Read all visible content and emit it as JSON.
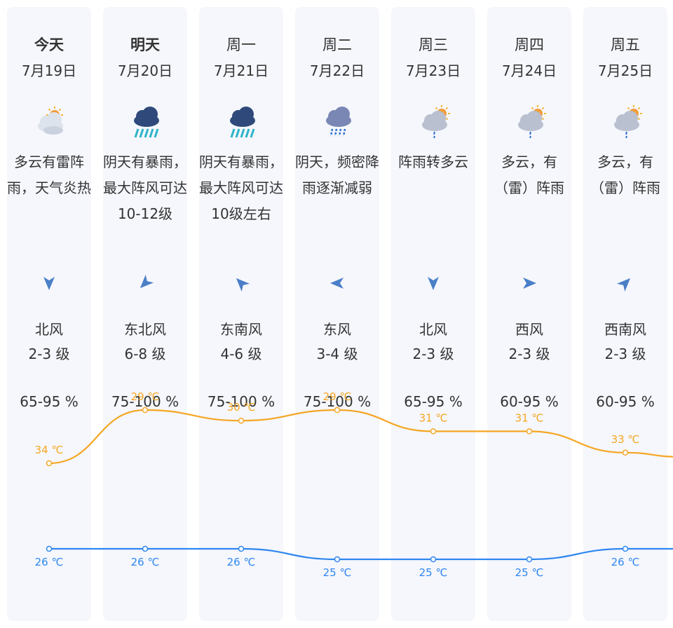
{
  "colors": {
    "high": "#f5a623",
    "low": "#2f86f0",
    "card": "#f5f7fc"
  },
  "days": [
    {
      "day": "今天",
      "bold": true,
      "date": "7月19日",
      "icon": "partly-cloudy-thunder-icon",
      "desc": "多云有雷阵雨，天气炎热",
      "wind_dir": "北风",
      "wind_arrow": "wind-arrow-north-icon",
      "wind_level": "2-3 级",
      "humidity": "65-95 %",
      "high": "34 ℃",
      "low": "26 ℃"
    },
    {
      "day": "明天",
      "bold": true,
      "date": "7月20日",
      "icon": "heavy-rain-icon",
      "desc": "阴天有暴雨，最大阵风可达10-12级",
      "wind_dir": "东北风",
      "wind_arrow": "wind-arrow-northeast-icon",
      "wind_level": "6-8 级",
      "humidity": "75-100 %",
      "high": "29 ℃",
      "low": "26 ℃"
    },
    {
      "day": "周一",
      "bold": false,
      "date": "7月21日",
      "icon": "heavy-rain-icon",
      "desc": "阴天有暴雨，最大阵风可达10级左右",
      "wind_dir": "东南风",
      "wind_arrow": "wind-arrow-southeast-icon",
      "wind_level": "4-6 级",
      "humidity": "75-100 %",
      "high": "30 ℃",
      "low": "26 ℃"
    },
    {
      "day": "周二",
      "bold": false,
      "date": "7月22日",
      "icon": "overcast-rain-icon",
      "desc": "阴天，频密降雨逐渐减弱",
      "wind_dir": "东风",
      "wind_arrow": "wind-arrow-east-icon",
      "wind_level": "3-4 级",
      "humidity": "75-100 %",
      "high": "29 ℃",
      "low": "25 ℃"
    },
    {
      "day": "周三",
      "bold": false,
      "date": "7月23日",
      "icon": "shower-icon",
      "desc": "阵雨转多云",
      "wind_dir": "北风",
      "wind_arrow": "wind-arrow-north-icon",
      "wind_level": "2-3 级",
      "humidity": "65-95 %",
      "high": "31 ℃",
      "low": "25 ℃"
    },
    {
      "day": "周四",
      "bold": false,
      "date": "7月24日",
      "icon": "shower-icon",
      "desc": "多云，有（雷）阵雨",
      "wind_dir": "西风",
      "wind_arrow": "wind-arrow-west-icon",
      "wind_level": "2-3 级",
      "humidity": "60-95 %",
      "high": "31 ℃",
      "low": "25 ℃"
    },
    {
      "day": "周五",
      "bold": false,
      "date": "7月25日",
      "icon": "shower-icon",
      "desc": "多云，有（雷）阵雨",
      "wind_dir": "西南风",
      "wind_arrow": "wind-arrow-southwest-icon",
      "wind_level": "2-3 级",
      "humidity": "60-95 %",
      "high": "33 ℃",
      "low": "26 ℃"
    }
  ],
  "chart_data": {
    "type": "line",
    "categories": [
      "7月19日",
      "7月20日",
      "7月21日",
      "7月22日",
      "7月23日",
      "7月24日",
      "7月25日"
    ],
    "series": [
      {
        "values": [
          34,
          29,
          30,
          29,
          31,
          31,
          33
        ]
      },
      {
        "values": [
          26,
          26,
          26,
          25,
          25,
          25,
          26
        ]
      }
    ]
  }
}
